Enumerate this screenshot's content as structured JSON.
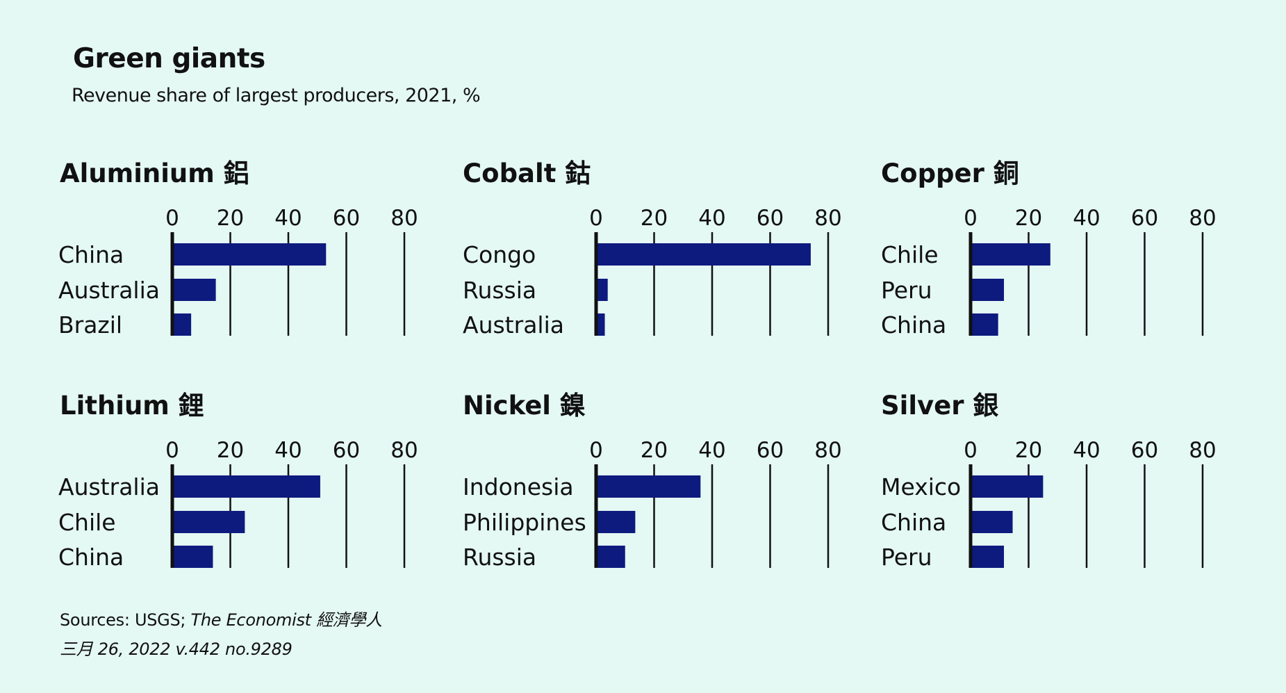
{
  "title": "Green giants",
  "subtitle": "Revenue share of largest producers, 2021, %",
  "colors": {
    "bar": "#0d1a7e",
    "background": "#e4f8f4",
    "axis": "#111111"
  },
  "sources_prefix": "Sources: USGS; ",
  "sources_publication": "The Economist 經濟學人",
  "footnote": "三月 26, 2022 v.442 no.9289",
  "chart_data": [
    {
      "type": "bar",
      "orientation": "horizontal",
      "title": "Aluminium 鋁",
      "categories": [
        "China",
        "Australia",
        "Brazil"
      ],
      "values": [
        53,
        15,
        6.5
      ],
      "xlim": [
        0,
        80
      ],
      "xticks": [
        0,
        20,
        40,
        60,
        80
      ],
      "grid": true
    },
    {
      "type": "bar",
      "orientation": "horizontal",
      "title": "Cobalt 鈷",
      "categories": [
        "Congo",
        "Russia",
        "Australia"
      ],
      "values": [
        74,
        4,
        3
      ],
      "xlim": [
        0,
        80
      ],
      "xticks": [
        0,
        20,
        40,
        60,
        80
      ],
      "grid": true
    },
    {
      "type": "bar",
      "orientation": "horizontal",
      "title": "Copper 銅",
      "categories": [
        "Chile",
        "Peru",
        "China"
      ],
      "values": [
        27.5,
        11.5,
        9.5
      ],
      "xlim": [
        0,
        80
      ],
      "xticks": [
        0,
        20,
        40,
        60,
        80
      ],
      "grid": true
    },
    {
      "type": "bar",
      "orientation": "horizontal",
      "title": "Lithium 鋰",
      "categories": [
        "Australia",
        "Chile",
        "China"
      ],
      "values": [
        51,
        25,
        14
      ],
      "xlim": [
        0,
        80
      ],
      "xticks": [
        0,
        20,
        40,
        60,
        80
      ],
      "grid": true
    },
    {
      "type": "bar",
      "orientation": "horizontal",
      "title": "Nickel 鎳",
      "categories": [
        "Indonesia",
        "Philippines",
        "Russia"
      ],
      "values": [
        36,
        13.5,
        10
      ],
      "xlim": [
        0,
        80
      ],
      "xticks": [
        0,
        20,
        40,
        60,
        80
      ],
      "grid": true
    },
    {
      "type": "bar",
      "orientation": "horizontal",
      "title": "Silver 銀",
      "categories": [
        "Mexico",
        "China",
        "Peru"
      ],
      "values": [
        25,
        14.5,
        11.5
      ],
      "xlim": [
        0,
        80
      ],
      "xticks": [
        0,
        20,
        40,
        60,
        80
      ],
      "grid": true
    }
  ]
}
